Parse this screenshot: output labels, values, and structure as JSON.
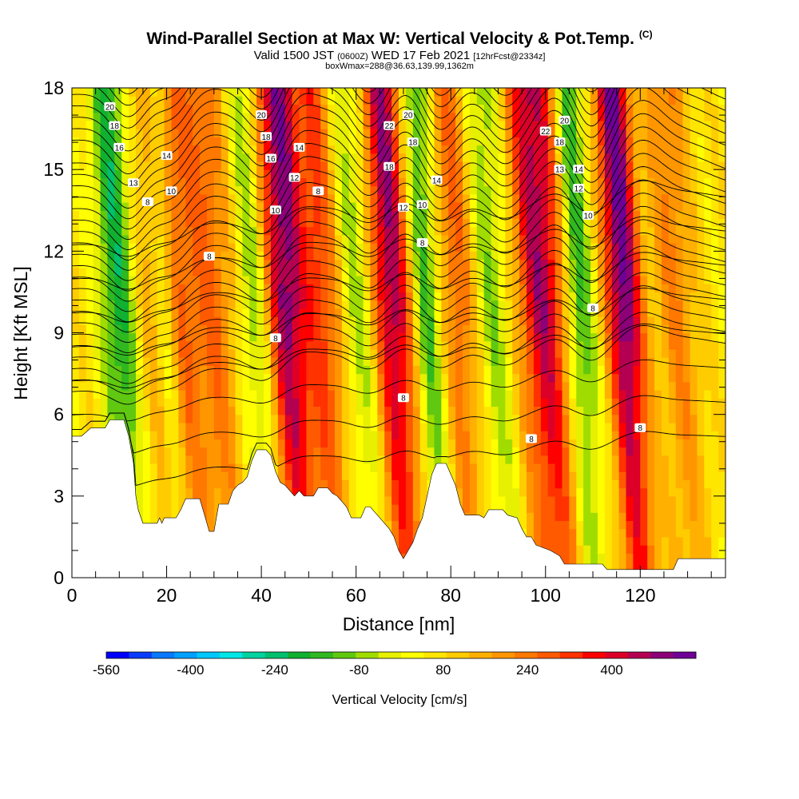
{
  "header": {
    "title": "Wind-Parallel Section at Max W: Vertical Velocity & Pot.Temp.",
    "copyright": "(C)",
    "valid_prefix": "Valid 1500 JST",
    "valid_utc": "(0600Z)",
    "valid_date": "WED 17 Feb 2021",
    "forecast": "[12hrFcst@2334z]",
    "box_info": "boxWmax=288@36.63,139.99,1362m"
  },
  "chart_data": {
    "type": "heatmap",
    "xlabel": "Distance [nm]",
    "ylabel": "Height [Kft MSL]",
    "xlim": [
      0,
      138
    ],
    "ylim": [
      0,
      18
    ],
    "x_ticks": [
      0,
      20,
      40,
      60,
      80,
      100,
      120
    ],
    "y_ticks": [
      0,
      3,
      6,
      9,
      12,
      15,
      18
    ],
    "colorbar": {
      "label": "Vertical Velocity [cm/s]",
      "range": [
        -560,
        560
      ],
      "tick_labels": [
        "-560",
        "-400",
        "-240",
        "-80",
        "80",
        "240",
        "400"
      ],
      "colors": [
        "#0000ff",
        "#0a3cff",
        "#0a78ff",
        "#00a0ff",
        "#00c8ff",
        "#00e6e6",
        "#00d2a0",
        "#00c070",
        "#10b030",
        "#30b820",
        "#60c810",
        "#a0dc00",
        "#e6f000",
        "#ffff00",
        "#ffe600",
        "#ffcc00",
        "#ffb000",
        "#ff9600",
        "#ff7800",
        "#ff5a00",
        "#ff3200",
        "#ff0000",
        "#dc0028",
        "#b40050",
        "#8c0078",
        "#6e0096"
      ]
    },
    "terrain": [
      [
        0,
        5.2
      ],
      [
        2,
        5.2
      ],
      [
        4,
        5.5
      ],
      [
        7,
        5.5
      ],
      [
        8,
        5.8
      ],
      [
        11,
        5.8
      ],
      [
        12,
        5.2
      ],
      [
        13,
        4.2
      ],
      [
        13.5,
        3
      ],
      [
        14,
        2.5
      ],
      [
        15,
        2
      ],
      [
        18,
        2
      ],
      [
        18.5,
        2.2
      ],
      [
        19,
        2
      ],
      [
        19.5,
        2.2
      ],
      [
        22,
        2.2
      ],
      [
        23,
        2.5
      ],
      [
        24,
        2.9
      ],
      [
        27,
        2.9
      ],
      [
        28,
        2.3
      ],
      [
        29,
        1.7
      ],
      [
        30,
        1.7
      ],
      [
        31,
        2.7
      ],
      [
        33,
        2.7
      ],
      [
        34,
        3.2
      ],
      [
        35,
        3.4
      ],
      [
        36,
        3.5
      ],
      [
        37,
        3.7
      ],
      [
        38,
        4.3
      ],
      [
        39,
        4.7
      ],
      [
        41,
        4.7
      ],
      [
        42,
        4.5
      ],
      [
        43,
        3.9
      ],
      [
        44,
        3.5
      ],
      [
        45,
        3.4
      ],
      [
        46,
        3.2
      ],
      [
        47,
        3
      ],
      [
        48,
        3.2
      ],
      [
        49,
        3
      ],
      [
        51,
        3
      ],
      [
        52,
        3.3
      ],
      [
        54,
        3.3
      ],
      [
        55,
        3.1
      ],
      [
        56,
        3
      ],
      [
        57,
        2.8
      ],
      [
        58,
        2.6
      ],
      [
        59,
        2.2
      ],
      [
        61,
        2.2
      ],
      [
        62,
        2.6
      ],
      [
        63,
        2.6
      ],
      [
        65,
        2.2
      ],
      [
        67,
        1.8
      ],
      [
        68,
        1.5
      ],
      [
        69,
        1
      ],
      [
        70,
        0.7
      ],
      [
        71,
        1
      ],
      [
        72,
        1.3
      ],
      [
        73,
        1.8
      ],
      [
        74,
        2.2
      ],
      [
        75,
        3
      ],
      [
        76,
        3.8
      ],
      [
        77,
        4.2
      ],
      [
        79,
        4.2
      ],
      [
        80,
        3.8
      ],
      [
        81,
        3.4
      ],
      [
        82,
        2.7
      ],
      [
        83,
        2.3
      ],
      [
        86,
        2.3
      ],
      [
        87,
        2.2
      ],
      [
        88,
        2.5
      ],
      [
        91,
        2.5
      ],
      [
        92,
        2.3
      ],
      [
        94,
        2.2
      ],
      [
        95,
        1.8
      ],
      [
        96,
        1.5
      ],
      [
        97,
        1.5
      ],
      [
        98,
        1.2
      ],
      [
        101,
        1
      ],
      [
        103,
        0.8
      ],
      [
        104,
        0.5
      ],
      [
        110,
        0.5
      ],
      [
        112,
        0.5
      ],
      [
        113,
        0.3
      ],
      [
        127,
        0.3
      ],
      [
        128,
        0.7
      ],
      [
        138,
        0.7
      ]
    ],
    "updrafts": [
      {
        "x": 23,
        "w": 4.5,
        "amp": 0.45
      },
      {
        "x": 32,
        "w": 3,
        "amp": 0.3
      },
      {
        "x": 47,
        "w": 3.6,
        "amp": 0.85
      },
      {
        "x": 54,
        "w": 3,
        "amp": 0.5
      },
      {
        "x": 69,
        "w": 3.2,
        "amp": 0.8
      },
      {
        "x": 83,
        "w": 3,
        "amp": 0.4
      },
      {
        "x": 101,
        "w": 4,
        "amp": 0.75
      },
      {
        "x": 118,
        "w": 2.6,
        "amp": 0.9
      },
      {
        "x": 129,
        "w": 3,
        "amp": 0.3
      }
    ],
    "downdrafts": [
      {
        "x": 11,
        "w": 2.6,
        "amp": -0.5
      },
      {
        "x": 21,
        "w": 1.8,
        "amp": -0.4
      },
      {
        "x": 40,
        "w": 2.5,
        "amp": -0.35
      },
      {
        "x": 51,
        "w": 2.2,
        "amp": -0.25
      },
      {
        "x": 62,
        "w": 3,
        "amp": -0.3
      },
      {
        "x": 76,
        "w": 2.4,
        "amp": -0.45
      },
      {
        "x": 90,
        "w": 3,
        "amp": -0.3
      },
      {
        "x": 108,
        "w": 2.4,
        "amp": -0.5
      }
    ],
    "theta_contour_labels": [
      {
        "text": "20",
        "x": 8,
        "y": 17.3
      },
      {
        "text": "18",
        "x": 9,
        "y": 16.6
      },
      {
        "text": "16",
        "x": 10,
        "y": 15.8
      },
      {
        "text": "13",
        "x": 13,
        "y": 14.5
      },
      {
        "text": "8",
        "x": 16,
        "y": 13.8
      },
      {
        "text": "14",
        "x": 20,
        "y": 15.5
      },
      {
        "text": "10",
        "x": 21,
        "y": 14.2
      },
      {
        "text": "8",
        "x": 29,
        "y": 11.8
      },
      {
        "text": "20",
        "x": 40,
        "y": 17
      },
      {
        "text": "18",
        "x": 41,
        "y": 16.2
      },
      {
        "text": "16",
        "x": 42,
        "y": 15.4
      },
      {
        "text": "14",
        "x": 48,
        "y": 15.8
      },
      {
        "text": "12",
        "x": 47,
        "y": 14.7
      },
      {
        "text": "10",
        "x": 43,
        "y": 13.5
      },
      {
        "text": "8",
        "x": 52,
        "y": 14.2
      },
      {
        "text": "8",
        "x": 43,
        "y": 8.8
      },
      {
        "text": "22",
        "x": 67,
        "y": 16.6
      },
      {
        "text": "20",
        "x": 71,
        "y": 17
      },
      {
        "text": "18",
        "x": 72,
        "y": 16
      },
      {
        "text": "18",
        "x": 67,
        "y": 15.1
      },
      {
        "text": "14",
        "x": 77,
        "y": 14.6
      },
      {
        "text": "12",
        "x": 70,
        "y": 13.6
      },
      {
        "text": "10",
        "x": 74,
        "y": 13.7
      },
      {
        "text": "8",
        "x": 74,
        "y": 12.3
      },
      {
        "text": "8",
        "x": 70,
        "y": 6.6
      },
      {
        "text": "22",
        "x": 100,
        "y": 16.4
      },
      {
        "text": "20",
        "x": 104,
        "y": 16.8
      },
      {
        "text": "18",
        "x": 103,
        "y": 16
      },
      {
        "text": "13",
        "x": 103,
        "y": 15
      },
      {
        "text": "14",
        "x": 107,
        "y": 15
      },
      {
        "text": "12",
        "x": 107,
        "y": 14.3
      },
      {
        "text": "10",
        "x": 109,
        "y": 13.3
      },
      {
        "text": "8",
        "x": 110,
        "y": 9.9
      },
      {
        "text": "8",
        "x": 97,
        "y": 5.1
      },
      {
        "text": "8",
        "x": 120,
        "y": 5.5
      }
    ]
  }
}
